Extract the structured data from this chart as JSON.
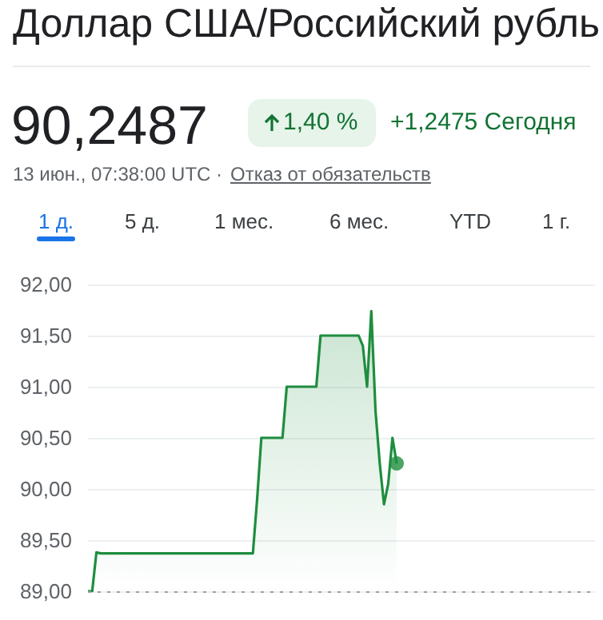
{
  "chart_data": {
    "type": "area",
    "title": "Доллар США/Российский рубль",
    "annotations": [
      "90,2487",
      "1,40 %",
      "+1,2475 Сегодня",
      "13 июн., 07:38:00 UTC ·",
      "Отказ от обязательств",
      "1 д.",
      "5 д.",
      "1 мес.",
      "6 мес.",
      "YTD",
      "1 г."
    ],
    "categories": [
      null,
      null,
      null,
      null,
      null,
      null,
      null,
      null,
      null,
      null,
      null,
      null,
      null,
      null,
      null,
      null,
      null,
      null,
      null,
      null,
      null,
      null,
      null,
      null,
      null,
      null,
      null,
      null,
      null,
      null,
      null,
      null,
      null,
      null,
      null,
      null,
      null,
      null,
      null,
      null,
      null,
      null,
      null,
      null,
      null,
      null,
      null,
      null,
      null,
      null,
      null,
      null,
      null,
      null,
      null,
      null,
      null,
      null,
      null,
      null,
      null,
      null,
      null,
      null,
      null,
      null,
      null,
      null,
      null,
      null,
      null,
      null,
      null,
      null
    ],
    "series": [
      {
        "color": "#1e8e3e",
        "values": [
          89.0,
          89.0,
          89.38,
          89.37,
          89.37,
          89.37,
          89.37,
          89.37,
          89.37,
          89.37,
          89.37,
          89.37,
          89.37,
          89.37,
          89.37,
          89.37,
          89.37,
          89.37,
          89.37,
          89.37,
          89.37,
          89.37,
          89.37,
          89.37,
          89.37,
          89.37,
          89.37,
          89.37,
          89.37,
          89.37,
          89.37,
          89.37,
          89.37,
          89.37,
          89.37,
          89.37,
          89.37,
          89.37,
          89.37,
          89.37,
          89.9,
          90.5,
          90.5,
          90.5,
          90.5,
          90.5,
          90.5,
          91.0,
          91.0,
          91.0,
          91.0,
          91.0,
          91.0,
          91.0,
          91.0,
          91.5,
          91.5,
          91.5,
          91.5,
          91.5,
          91.5,
          91.5,
          91.5,
          91.5,
          91.5,
          91.4,
          91.0,
          91.74,
          90.76,
          90.25,
          89.85,
          90.05,
          90.5,
          90.25
        ]
      },
      {
        "type": "scatter",
        "color": "#1e8e3e",
        "values": [
          null,
          null,
          null,
          null,
          null,
          null,
          null,
          null,
          null,
          null,
          null,
          null,
          null,
          null,
          null,
          null,
          null,
          null,
          null,
          null,
          null,
          null,
          null,
          null,
          null,
          null,
          null,
          null,
          null,
          null,
          null,
          null,
          null,
          null,
          null,
          null,
          null,
          null,
          null,
          null,
          null,
          null,
          null,
          null,
          null,
          null,
          null,
          null,
          null,
          null,
          null,
          null,
          null,
          null,
          null,
          null,
          null,
          null,
          null,
          null,
          null,
          null,
          null,
          null,
          null,
          null,
          null,
          null,
          null,
          null,
          null,
          null,
          null,
          90.25
        ]
      }
    ],
    "ylim": [
      89,
      92
    ],
    "yticks": [
      {
        "value": 89,
        "label": "89,00"
      },
      {
        "value": 89.5,
        "label": "89,50"
      },
      {
        "value": 90,
        "label": "90,00"
      },
      {
        "value": 90.5,
        "label": "90,50"
      },
      {
        "value": 91,
        "label": "91,00"
      },
      {
        "value": 91.5,
        "label": "91,50"
      },
      {
        "value": 92,
        "label": "92,00"
      }
    ],
    "grid": "y",
    "ref_lines": [
      {
        "axis": "y",
        "value": 89,
        "color": "#9aa0a6",
        "line_style": "dotted"
      }
    ],
    "tick_labels": "y"
  }
}
